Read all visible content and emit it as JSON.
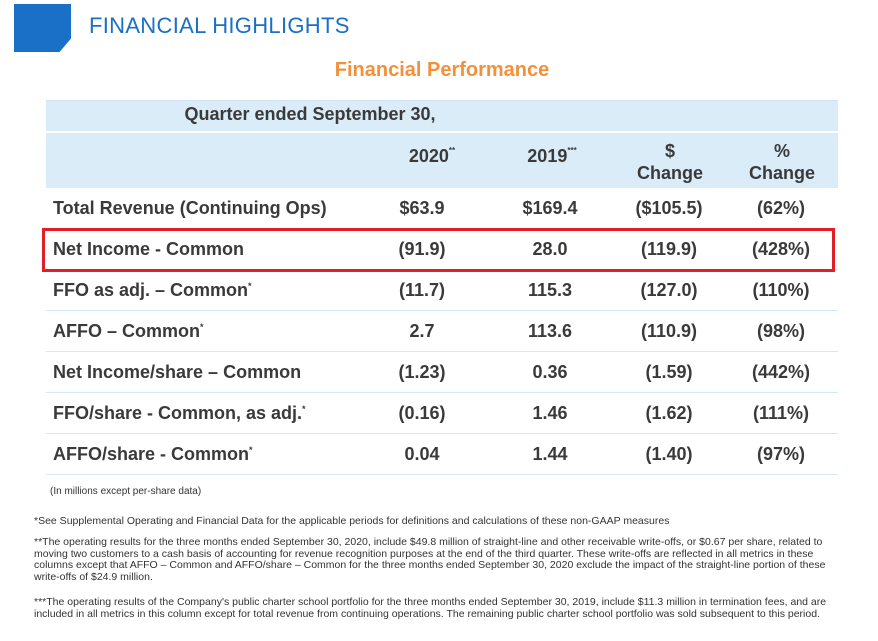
{
  "header": {
    "title": "FINANCIAL HIGHLIGHTS",
    "subtitle": "Financial Performance"
  },
  "colors": {
    "title_blue": "#1a70c6",
    "subtitle_orange": "#f2913a",
    "header_band": "#d9ecf8",
    "highlight_red": "#e01f26"
  },
  "table": {
    "period_header": "Quarter ended September 30,",
    "columns": [
      {
        "line1": "",
        "line2": "2020",
        "marker": "**"
      },
      {
        "line1": "",
        "line2": "2019",
        "marker": "***"
      },
      {
        "line1": "$",
        "line2": "Change",
        "marker": ""
      },
      {
        "line1": "%",
        "line2": "Change",
        "marker": ""
      }
    ],
    "rows": [
      {
        "label": "Total Revenue (Continuing Ops)",
        "marker": "",
        "v2020": "$63.9",
        "v2019": "$169.4",
        "chg": "($105.5)",
        "pct": "(62%)"
      },
      {
        "label": "Net Income - Common",
        "marker": "",
        "v2020": "(91.9)",
        "v2019": "28.0",
        "chg": "(119.9)",
        "pct": "(428%)",
        "highlighted": true
      },
      {
        "label": "FFO as adj. – Common",
        "marker": "*",
        "v2020": "(11.7)",
        "v2019": "115.3",
        "chg": "(127.0)",
        "pct": "(110%)"
      },
      {
        "label": "AFFO – Common",
        "marker": "*",
        "v2020": "2.7",
        "v2019": "113.6",
        "chg": "(110.9)",
        "pct": "(98%)"
      },
      {
        "label": "Net Income/share – Common",
        "marker": "",
        "v2020": "(1.23)",
        "v2019": "0.36",
        "chg": "(1.59)",
        "pct": "(442%)"
      },
      {
        "label": "FFO/share - Common, as adj.",
        "marker": "*",
        "v2020": "(0.16)",
        "v2019": "1.46",
        "chg": "(1.62)",
        "pct": "(111%)"
      },
      {
        "label": "AFFO/share - Common",
        "marker": "*",
        "v2020": "0.04",
        "v2019": "1.44",
        "chg": "(1.40)",
        "pct": "(97%)"
      }
    ],
    "units_note": "(In millions except per-share data)"
  },
  "footnotes": [
    "*See Supplemental Operating and Financial Data for the applicable periods for definitions and calculations of these non-GAAP measures",
    "**The operating results for the three months ended September 30, 2020, include $49.8 million of straight-line and other receivable write-offs, or $0.67 per share, related to moving two customers to a cash basis of accounting for revenue recognition purposes at the end of the third quarter.  These write-offs are reflected in all metrics in these columns except that AFFO – Common and AFFO/share – Common for the three months ended September 30, 2020 exclude the impact of the straight-line portion of these write-offs of $24.9 million.",
    "***The operating results of the Company's public charter school portfolio for the three months ended September 30, 2019, include $11.3 million in termination fees, and are included in all metrics in this column except for total revenue from continuing operations. The remaining public charter school portfolio was sold subsequent to this period."
  ]
}
